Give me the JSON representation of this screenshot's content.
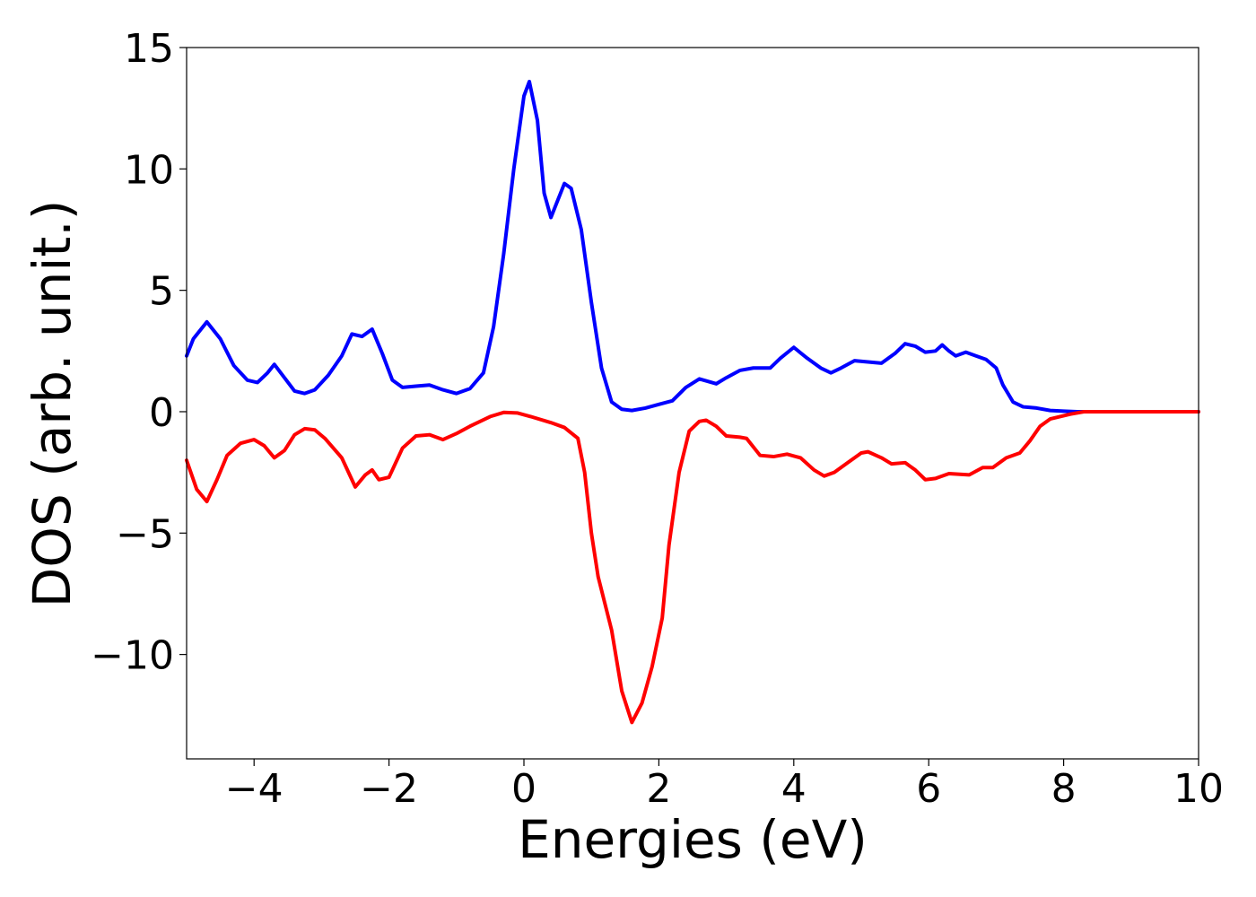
{
  "chart_data": {
    "type": "line",
    "xlabel": "Energies (eV)",
    "ylabel": "DOS (arb. unit.)",
    "xlim": [
      -5,
      10
    ],
    "ylim": [
      -14.3,
      15
    ],
    "xticks": [
      {
        "value": -4,
        "label": "−4"
      },
      {
        "value": -2,
        "label": "−2"
      },
      0,
      2,
      4,
      6,
      8,
      10
    ],
    "yticks": [
      {
        "value": -10,
        "label": "−10"
      },
      {
        "value": -5,
        "label": "−5"
      },
      0,
      5,
      10,
      15
    ],
    "series": [
      {
        "color": "#0000ff",
        "x": [
          -5,
          -4.9,
          -4.7,
          -4.5,
          -4.3,
          -4.1,
          -3.95,
          -3.8,
          -3.7,
          -3.55,
          -3.4,
          -3.25,
          -3.1,
          -2.9,
          -2.7,
          -2.55,
          -2.4,
          -2.25,
          -2.1,
          -1.95,
          -1.8,
          -1.6,
          -1.4,
          -1.2,
          -1.0,
          -0.8,
          -0.6,
          -0.45,
          -0.3,
          -0.15,
          0,
          0.08,
          0.2,
          0.3,
          0.4,
          0.5,
          0.6,
          0.7,
          0.85,
          1.0,
          1.15,
          1.3,
          1.45,
          1.6,
          1.8,
          2.0,
          2.2,
          2.4,
          2.6,
          2.85,
          3.0,
          3.2,
          3.4,
          3.65,
          3.8,
          4.0,
          4.2,
          4.4,
          4.55,
          4.7,
          4.9,
          5.1,
          5.3,
          5.5,
          5.65,
          5.8,
          5.95,
          6.1,
          6.2,
          6.3,
          6.4,
          6.55,
          6.7,
          6.85,
          7.0,
          7.1,
          7.25,
          7.4,
          7.6,
          7.8,
          8.0,
          8.2,
          10
        ],
        "values": [
          2.3,
          3.0,
          3.7,
          3.0,
          1.9,
          1.3,
          1.2,
          1.6,
          1.95,
          1.4,
          0.85,
          0.75,
          0.9,
          1.5,
          2.3,
          3.2,
          3.1,
          3.4,
          2.4,
          1.3,
          1.0,
          1.05,
          1.1,
          0.9,
          0.75,
          0.95,
          1.6,
          3.5,
          6.5,
          10,
          13,
          13.6,
          12,
          9,
          8,
          8.7,
          9.4,
          9.2,
          7.5,
          4.5,
          1.8,
          0.4,
          0.1,
          0.05,
          0.15,
          0.3,
          0.45,
          1.0,
          1.35,
          1.15,
          1.4,
          1.7,
          1.8,
          1.8,
          2.2,
          2.65,
          2.2,
          1.8,
          1.6,
          1.8,
          2.1,
          2.05,
          2.0,
          2.4,
          2.8,
          2.7,
          2.45,
          2.5,
          2.75,
          2.5,
          2.3,
          2.45,
          2.3,
          2.15,
          1.8,
          1.1,
          0.4,
          0.2,
          0.15,
          0.05,
          0.02,
          0,
          0
        ]
      },
      {
        "color": "#ff0000",
        "x": [
          -5,
          -4.85,
          -4.7,
          -4.55,
          -4.4,
          -4.2,
          -4.0,
          -3.85,
          -3.7,
          -3.55,
          -3.4,
          -3.25,
          -3.1,
          -2.95,
          -2.7,
          -2.5,
          -2.35,
          -2.25,
          -2.15,
          -2.0,
          -1.8,
          -1.6,
          -1.4,
          -1.2,
          -1.0,
          -0.8,
          -0.5,
          -0.3,
          -0.1,
          0.1,
          0.4,
          0.6,
          0.8,
          0.9,
          1.0,
          1.1,
          1.3,
          1.45,
          1.6,
          1.75,
          1.9,
          2.05,
          2.15,
          2.3,
          2.45,
          2.6,
          2.7,
          2.85,
          3.0,
          3.2,
          3.3,
          3.5,
          3.7,
          3.9,
          4.1,
          4.3,
          4.45,
          4.6,
          4.8,
          5.0,
          5.1,
          5.3,
          5.45,
          5.65,
          5.8,
          5.95,
          6.1,
          6.3,
          6.6,
          6.8,
          6.95,
          7.15,
          7.35,
          7.5,
          7.65,
          7.8,
          8.1,
          8.3,
          10
        ],
        "values": [
          -2.0,
          -3.2,
          -3.7,
          -2.8,
          -1.8,
          -1.3,
          -1.15,
          -1.4,
          -1.9,
          -1.6,
          -0.95,
          -0.7,
          -0.75,
          -1.1,
          -1.9,
          -3.1,
          -2.6,
          -2.4,
          -2.8,
          -2.7,
          -1.5,
          -1.0,
          -0.95,
          -1.15,
          -0.9,
          -0.6,
          -0.2,
          -0.03,
          -0.05,
          -0.2,
          -0.45,
          -0.65,
          -1.1,
          -2.5,
          -5.0,
          -6.8,
          -9,
          -11.5,
          -12.8,
          -12,
          -10.5,
          -8.5,
          -5.5,
          -2.5,
          -0.8,
          -0.4,
          -0.35,
          -0.6,
          -1.0,
          -1.05,
          -1.1,
          -1.8,
          -1.85,
          -1.75,
          -1.9,
          -2.4,
          -2.65,
          -2.5,
          -2.1,
          -1.7,
          -1.65,
          -1.9,
          -2.15,
          -2.1,
          -2.4,
          -2.8,
          -2.75,
          -2.55,
          -2.6,
          -2.3,
          -2.3,
          -1.9,
          -1.7,
          -1.2,
          -0.6,
          -0.3,
          -0.1,
          0,
          0
        ]
      }
    ]
  }
}
